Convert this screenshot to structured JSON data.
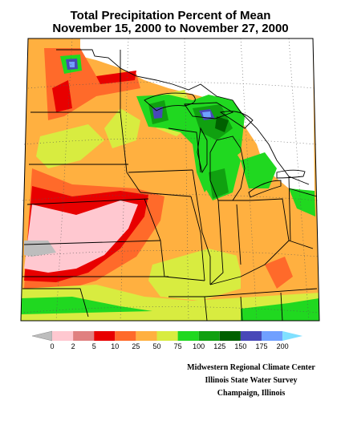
{
  "title": {
    "line1": "Total Precipitation Percent of Mean",
    "line2": "November 15, 2000 to November 27, 2000"
  },
  "legend": {
    "colors": [
      "#bdbdbd",
      "#ffc8d0",
      "#e08080",
      "#e80000",
      "#ff6a2a",
      "#ffb040",
      "#d8ec40",
      "#20d820",
      "#10a010",
      "#006000",
      "#4848b8",
      "#70a0ff",
      "#80e0ff"
    ],
    "labels": [
      "0",
      "2",
      "5",
      "10",
      "25",
      "50",
      "75",
      "100",
      "125",
      "150",
      "175",
      "200"
    ]
  },
  "credits": {
    "line1": "Midwestern Regional Climate Center",
    "line2": "Illinois State Water Survey",
    "line3": "Champaign, Illinois"
  }
}
